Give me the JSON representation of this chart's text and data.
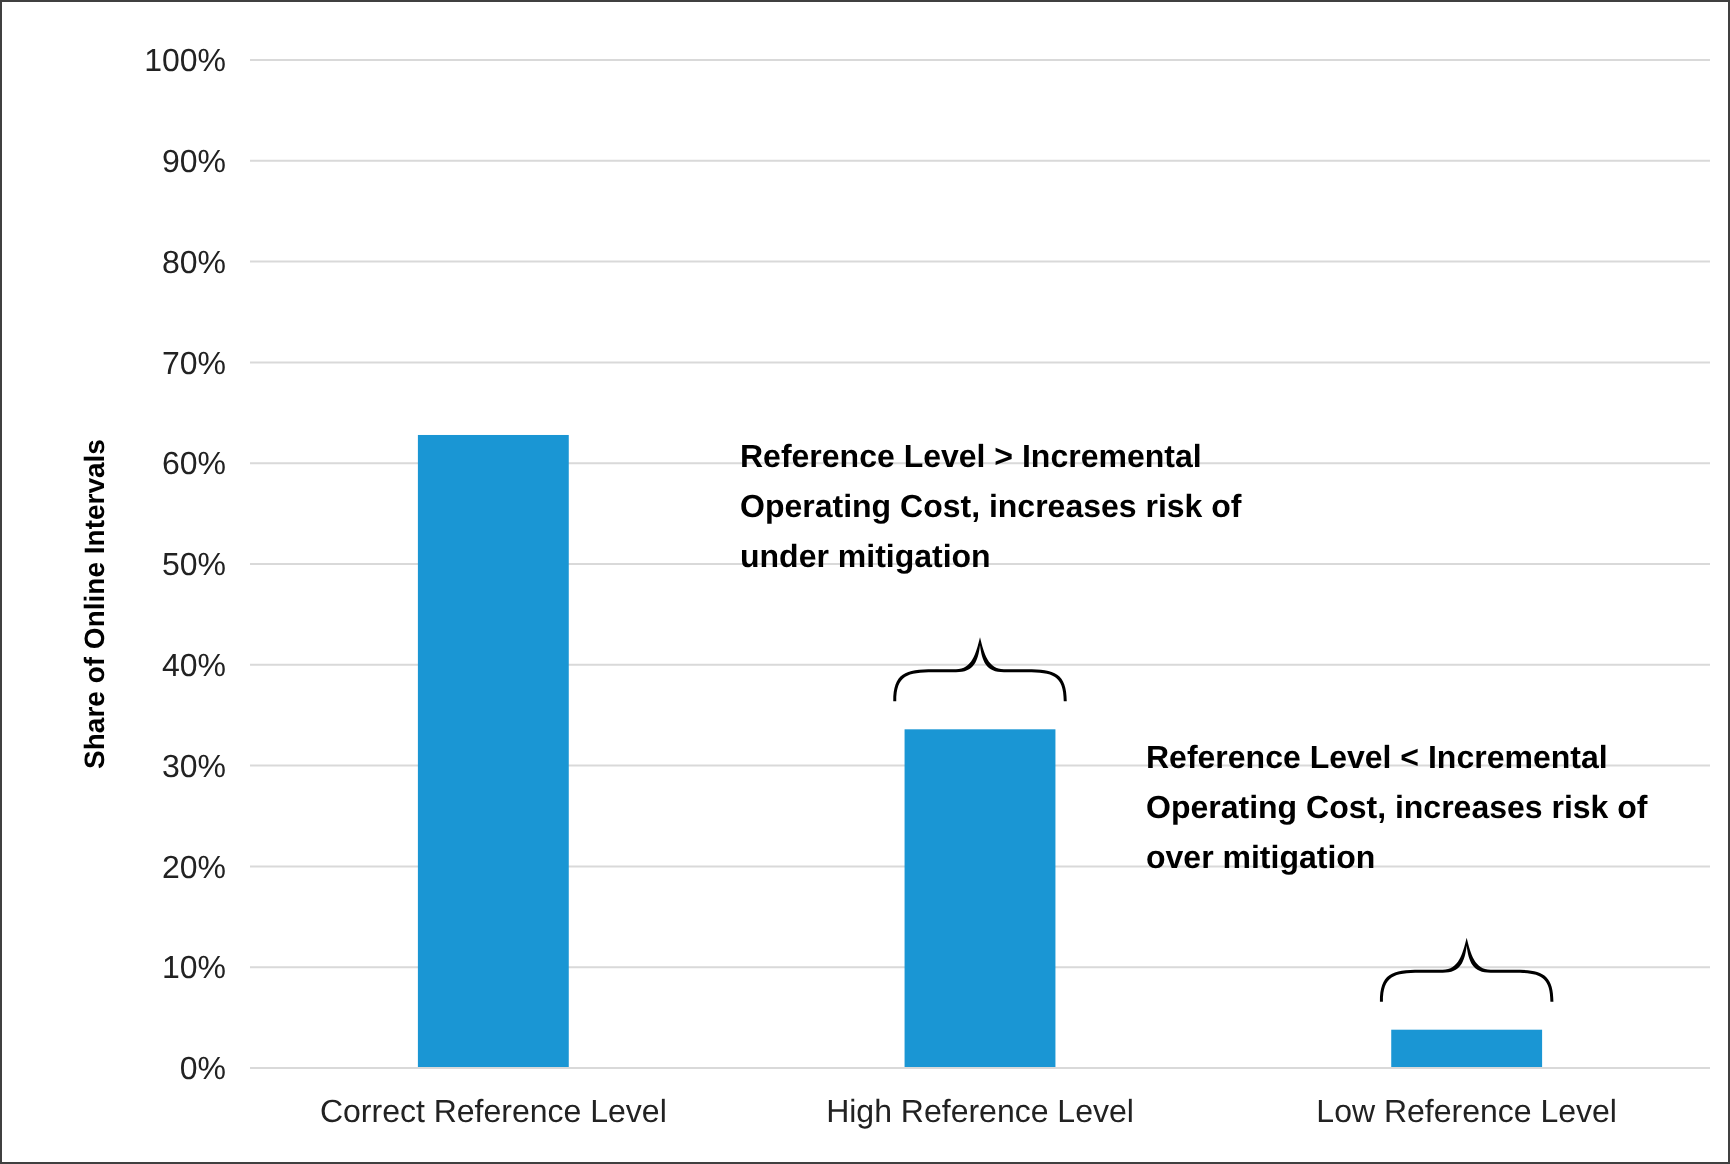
{
  "chart_data": {
    "type": "bar",
    "ylabel": "Share of Online Intervals",
    "categories": [
      "Correct Reference Level",
      "High Reference Level",
      "Low Reference Level"
    ],
    "values": [
      62.8,
      33.6,
      3.8
    ],
    "color": "#1a96d4",
    "ylim": [
      0,
      100
    ],
    "yticks": [
      {
        "value": 0,
        "label": "0%"
      },
      {
        "value": 10,
        "label": "10%"
      },
      {
        "value": 20,
        "label": "20%"
      },
      {
        "value": 30,
        "label": "30%"
      },
      {
        "value": 40,
        "label": "40%"
      },
      {
        "value": 50,
        "label": "50%"
      },
      {
        "value": 60,
        "label": "60%"
      },
      {
        "value": 70,
        "label": "70%"
      },
      {
        "value": 80,
        "label": "80%"
      },
      {
        "value": 90,
        "label": "90%"
      },
      {
        "value": 100,
        "label": "100%"
      }
    ],
    "grid": "y",
    "annotations": [
      "Reference Level > Incremental Operating Cost, increases risk of under mitigation",
      "Reference Level < Incremental Operating Cost, increases risk of over mitigation"
    ]
  }
}
